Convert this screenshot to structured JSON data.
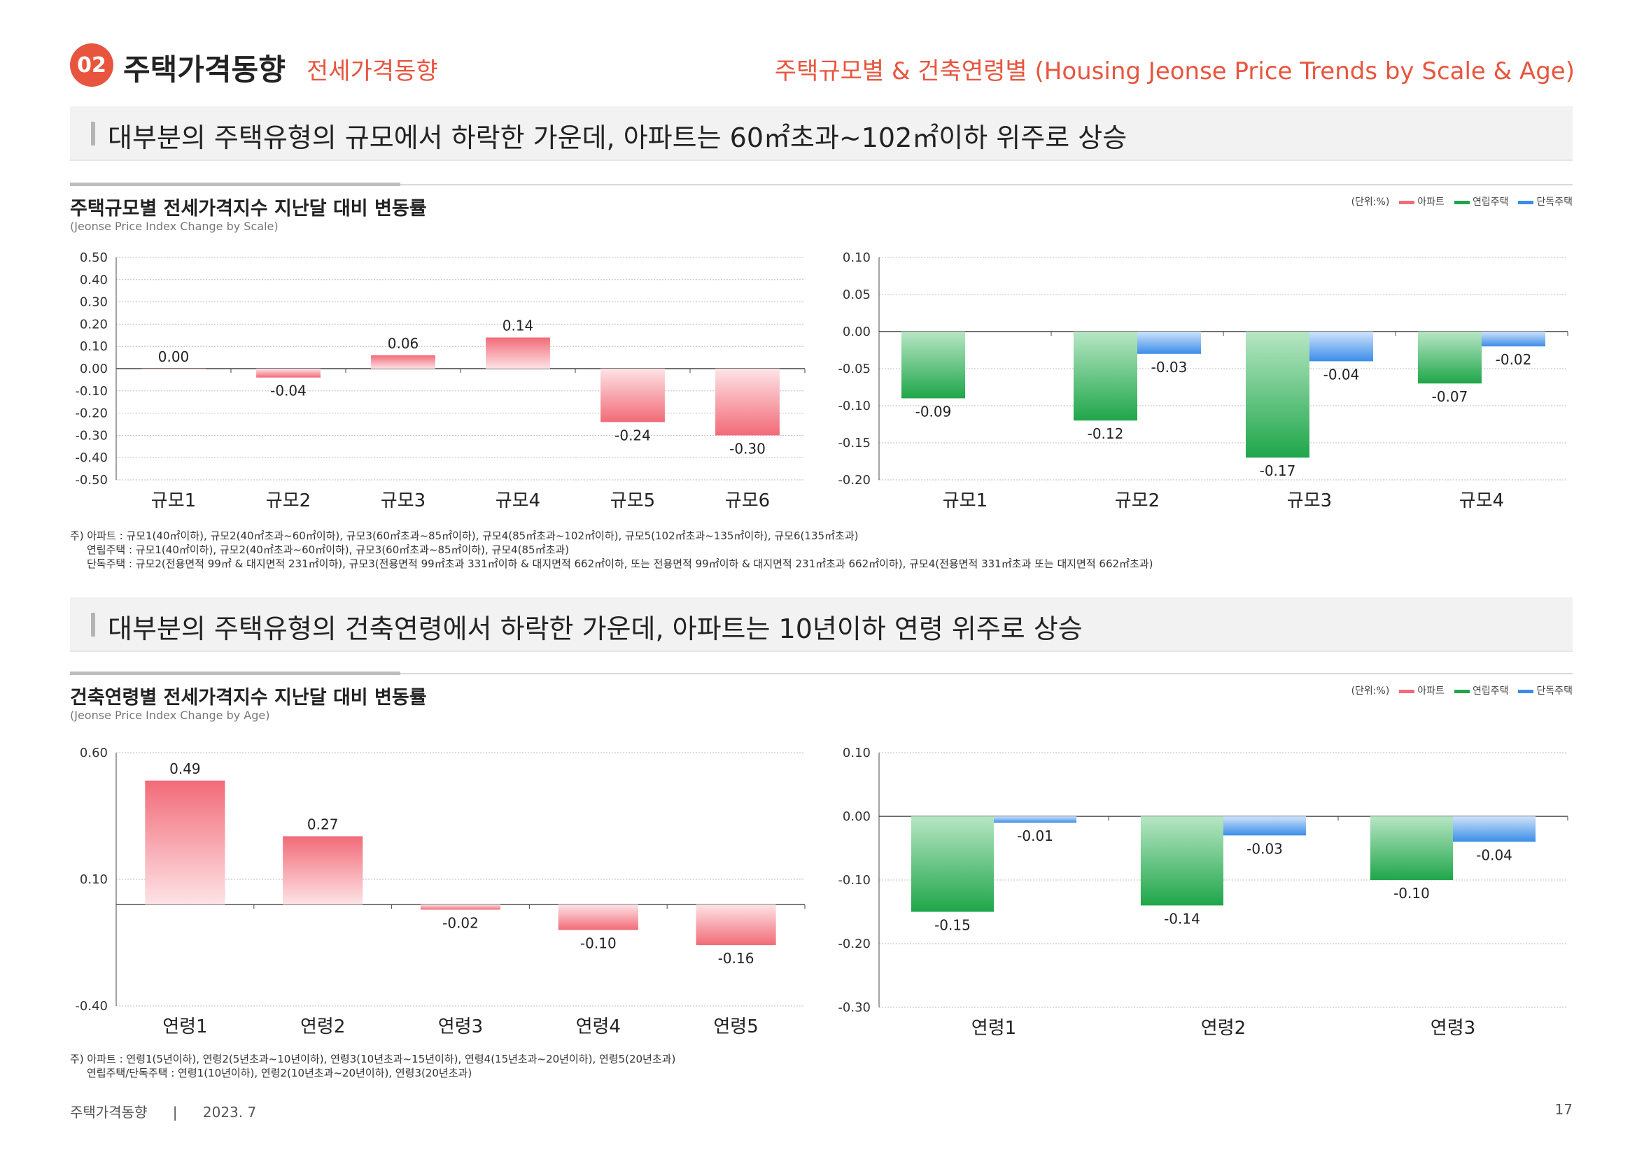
{
  "header": {
    "badge": "02",
    "section_title": "주택가격동향",
    "section_sub": "전세가격동향",
    "right_title": "주택규모별 & 건축연령별 (Housing Jeonse Price Trends by Scale & Age)"
  },
  "scale_section": {
    "headline": "대부분의 주택유형의 규모에서 하락한 가운데, 아파트는 60㎡초과~102㎡이하 위주로 상승",
    "chart_title": "주택규모별 전세가격지수 지난달 대비 변동률",
    "chart_subtitle": "(Jeonse Price Index Change by Scale)",
    "legend_unit": "(단위:%)",
    "notes": [
      "주) 아파트 : 규모1(40㎡이하), 규모2(40㎡초과~60㎡이하), 규모3(60㎡초과~85㎡이하), 규모4(85㎡초과~102㎡이하), 규모5(102㎡초과~135㎡이하), 규모6(135㎡초과)",
      "연립주택 : 규모1(40㎡이하), 규모2(40㎡초과~60㎡이하), 규모3(60㎡초과~85㎡이하), 규모4(85㎡초과)",
      "단독주택 : 규모2(전용면적 99㎡ & 대지면적 231㎡이하), 규모3(전용면적 99㎡초과 331㎡이하 & 대지면적 662㎡이하, 또는 전용면적 99㎡이하 & 대지면적 231㎡초과 662㎡이하), 규모4(전용면적 331㎡초과 또는 대지면적 662㎡초과)"
    ]
  },
  "age_section": {
    "headline": "대부분의 주택유형의 건축연령에서 하락한 가운데, 아파트는 10년이하 연령 위주로 상승",
    "chart_title": "건축연령별 전세가격지수 지난달 대비 변동률",
    "chart_subtitle": "(Jeonse Price Index Change by Age)",
    "legend_unit": "(단위:%)",
    "notes": [
      "주) 아파트 : 연령1(5년이하), 연령2(5년초과~10년이하), 연령3(10년초과~15년이하), 연령4(15년초과~20년이하), 연령5(20년초과)",
      "연립주택/단독주택 : 연령1(10년이하), 연령2(10년초과~20년이하), 연령3(20년초과)"
    ]
  },
  "legend": {
    "apt": "아파트",
    "row": "연립주택",
    "detached": "단독주택"
  },
  "colors": {
    "accent": "#e8553f",
    "apt": "#f26b78",
    "row": "#1fa64a",
    "detached": "#3b8de8"
  },
  "chart_data": [
    {
      "type": "bar",
      "categories": [
        "규모1",
        "규모2",
        "규모3",
        "규모4",
        "규모5",
        "규모6"
      ],
      "series": [
        {
          "name": "아파트",
          "values": [
            0.0,
            -0.04,
            0.06,
            0.14,
            -0.24,
            -0.3
          ]
        }
      ],
      "ylim": [
        -0.5,
        0.5
      ],
      "yticks": [
        "0.50",
        "0.40",
        "0.30",
        "0.20",
        "0.10",
        "0.00",
        "-0.10",
        "-0.20",
        "-0.30",
        "-0.40",
        "-0.50"
      ],
      "value_labels": [
        "0.00",
        "-0.04",
        "0.06",
        "0.14",
        "-0.24",
        "-0.30"
      ]
    },
    {
      "type": "bar",
      "categories": [
        "규모1",
        "규모2",
        "규모3",
        "규모4"
      ],
      "series": [
        {
          "name": "연립주택",
          "values": [
            -0.09,
            -0.12,
            -0.17,
            -0.07
          ],
          "labels": [
            "-0.09",
            "-0.12",
            "-0.17",
            "-0.07"
          ]
        },
        {
          "name": "단독주택",
          "values": [
            null,
            -0.03,
            -0.04,
            -0.02
          ],
          "labels": [
            "",
            "-0.03",
            "-0.04",
            "-0.02"
          ]
        }
      ],
      "ylim": [
        -0.2,
        0.1
      ],
      "yticks": [
        "0.10",
        "0.05",
        "0.00",
        "-0.05",
        "-0.10",
        "-0.15",
        "-0.20"
      ]
    },
    {
      "type": "bar",
      "categories": [
        "연령1",
        "연령2",
        "연령3",
        "연령4",
        "연령5"
      ],
      "series": [
        {
          "name": "아파트",
          "values": [
            0.49,
            0.27,
            -0.02,
            -0.1,
            -0.16
          ]
        }
      ],
      "ylim": [
        -0.4,
        0.6
      ],
      "yticks": [
        "0.60",
        "0.10",
        "-0.40"
      ],
      "value_labels": [
        "0.49",
        "0.27",
        "-0.02",
        "-0.10",
        "-0.16"
      ]
    },
    {
      "type": "bar",
      "categories": [
        "연령1",
        "연령2",
        "연령3"
      ],
      "series": [
        {
          "name": "연립주택",
          "values": [
            -0.15,
            -0.14,
            -0.1
          ],
          "labels": [
            "-0.15",
            "-0.14",
            "-0.10"
          ]
        },
        {
          "name": "단독주택",
          "values": [
            -0.01,
            -0.03,
            -0.04
          ],
          "labels": [
            "-0.01",
            "-0.03",
            "-0.04"
          ]
        }
      ],
      "ylim": [
        -0.3,
        0.1
      ],
      "yticks": [
        "0.10",
        "0.00",
        "-0.10",
        "-0.20",
        "-0.30"
      ]
    }
  ],
  "footer": {
    "left": "주택가격동향",
    "sep": "|",
    "date": "2023. 7",
    "page": "17"
  }
}
